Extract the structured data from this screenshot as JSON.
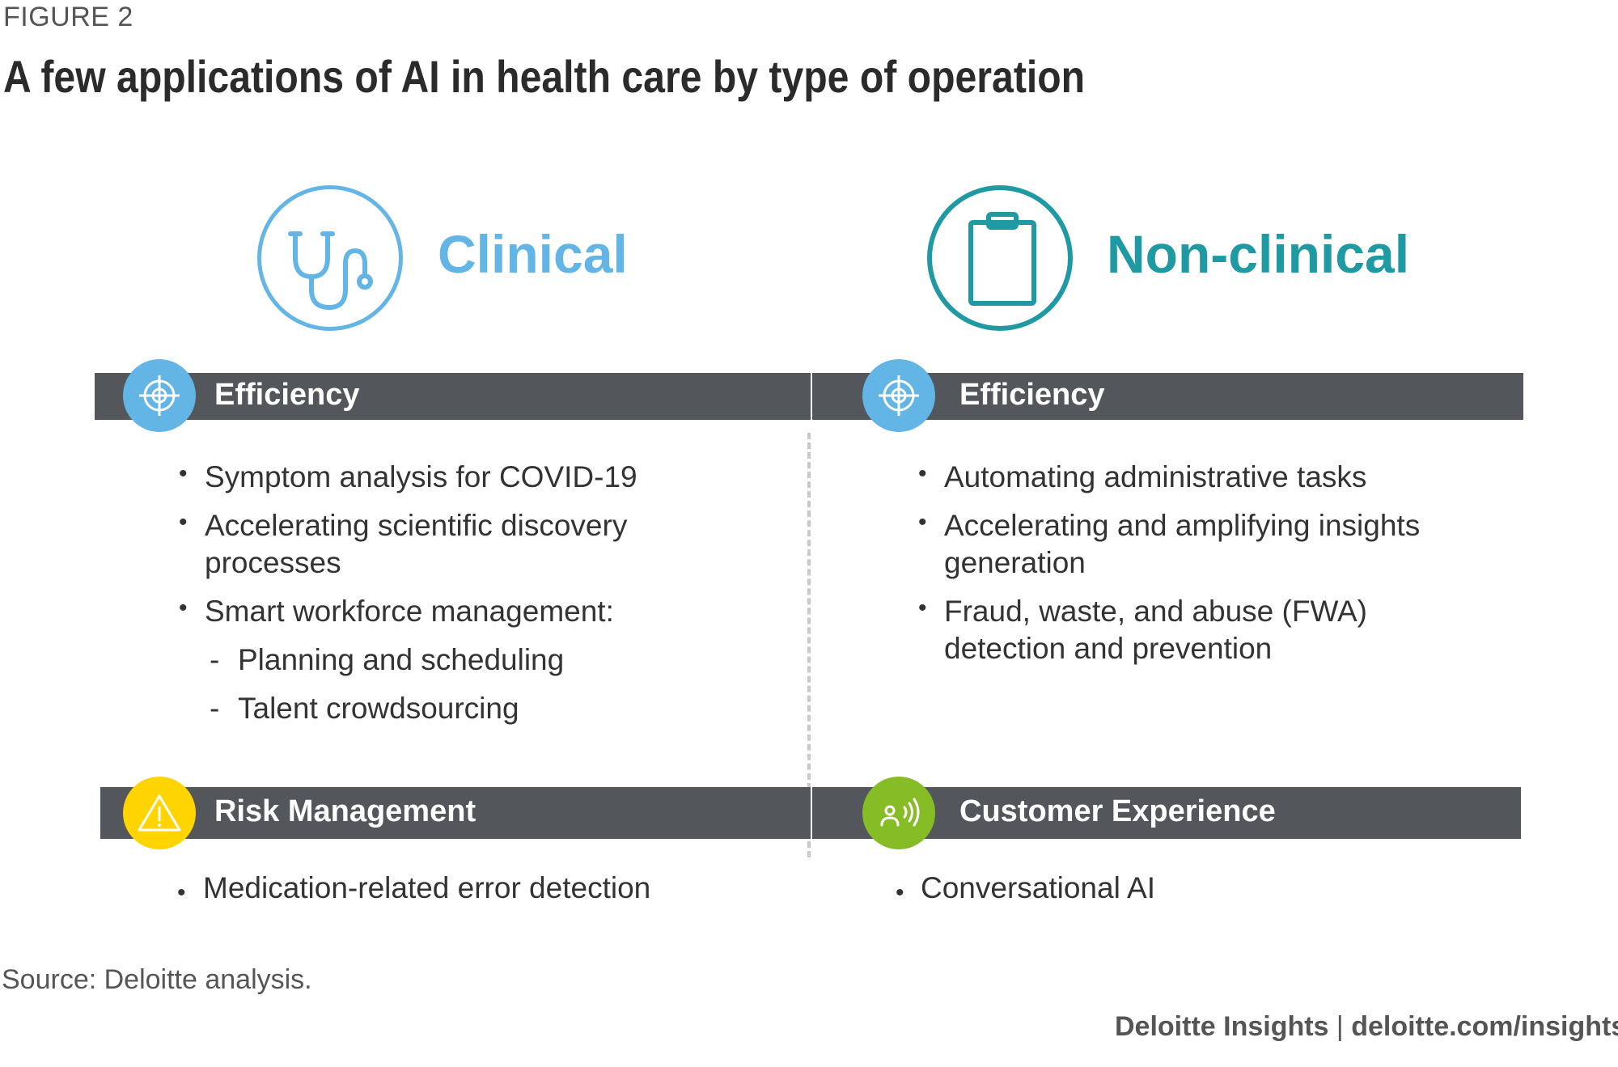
{
  "figure_label": "FIGURE 2",
  "title": "A few applications of AI in health care by type of operation",
  "columns": {
    "clinical": {
      "title": "Clinical",
      "icon": "stethoscope-icon",
      "color": "#62b5e5",
      "efficiency": {
        "label": "Efficiency",
        "items": [
          "Symptom analysis for COVID-19",
          "Accelerating scientific discovery",
          "processes",
          "Smart workforce management:",
          "Planning and scheduling",
          "Talent crowdsourcing"
        ]
      },
      "risk": {
        "label": "Risk Management",
        "items": [
          "Medication-related error detection"
        ]
      }
    },
    "nonclinical": {
      "title": "Non-clinical",
      "icon": "clipboard-icon",
      "color": "#1f9aa3",
      "efficiency": {
        "label": "Efficiency",
        "items": [
          "Automating administrative tasks",
          "Accelerating and amplifying insights",
          "generation",
          "Fraud, waste, and abuse (FWA)",
          "detection and prevention"
        ]
      },
      "customer": {
        "label": "Customer Experience",
        "items": [
          "Conversational AI"
        ]
      }
    }
  },
  "bullet_char": "•",
  "dash_char": "-",
  "bar_color": "#53565a",
  "badge_colors": {
    "efficiency": "#62b5e5",
    "risk": "#ffd400",
    "customer": "#86bc25"
  },
  "source": "Source: Deloitte analysis.",
  "credit": {
    "brand": "Deloitte Insights",
    "separator": "|",
    "url": "deloitte.com/insights"
  }
}
